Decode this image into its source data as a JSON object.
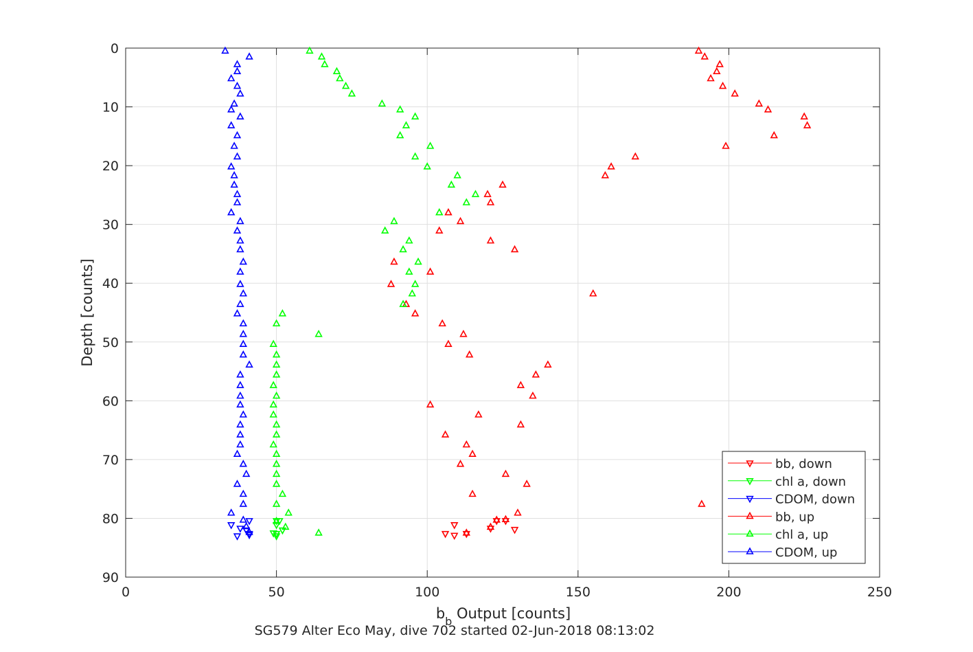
{
  "chart_data": {
    "type": "scatter",
    "title": "",
    "xlabel_main": "b",
    "xlabel_sub": "b",
    "xlabel_rest": " Output [counts]",
    "ylabel": "Depth [counts]",
    "caption": "SG579 Alter Eco May, dive 702 started 02-Jun-2018 08:13:02",
    "xlim": [
      0,
      250
    ],
    "ylim": [
      0,
      90
    ],
    "y_reversed": true,
    "grid": true,
    "legend_position": "bottom-right",
    "x_ticks": [
      "0",
      "50",
      "100",
      "150",
      "200",
      "250"
    ],
    "y_ticks": [
      "0",
      "10",
      "20",
      "30",
      "40",
      "50",
      "60",
      "70",
      "80",
      "90"
    ],
    "x_tick_values": [
      0,
      50,
      100,
      150,
      200,
      250
    ],
    "y_tick_values": [
      0,
      10,
      20,
      30,
      40,
      50,
      60,
      70,
      80,
      90
    ],
    "series": [
      {
        "name": "bb, down",
        "color": "#ff0000",
        "marker": "triangle-down",
        "points": [
          [
            109,
            81.1
          ],
          [
            106,
            82.6
          ],
          [
            109,
            82.9
          ],
          [
            113,
            82.6
          ],
          [
            121,
            81.7
          ],
          [
            129,
            81.9
          ],
          [
            126,
            80.4
          ],
          [
            123,
            80.4
          ]
        ]
      },
      {
        "name": "chl a, down",
        "color": "#00ff00",
        "marker": "triangle-down",
        "points": [
          [
            50,
            80.4
          ],
          [
            51,
            80.4
          ],
          [
            50,
            81.1
          ],
          [
            52,
            82.0
          ],
          [
            49,
            82.5
          ],
          [
            50,
            83.0
          ],
          [
            50,
            82.6
          ]
        ]
      },
      {
        "name": "CDOM, down",
        "color": "#0000ff",
        "marker": "triangle-down",
        "points": [
          [
            35,
            81.1
          ],
          [
            38,
            81.7
          ],
          [
            41,
            80.4
          ],
          [
            40,
            82.0
          ],
          [
            41,
            82.6
          ],
          [
            37,
            83.0
          ],
          [
            41,
            82.8
          ]
        ]
      },
      {
        "name": "bb, up",
        "color": "#ff0000",
        "marker": "triangle-up",
        "points": [
          [
            190,
            0.5
          ],
          [
            192,
            1.5
          ],
          [
            197,
            2.8
          ],
          [
            196,
            4.0
          ],
          [
            194,
            5.2
          ],
          [
            198,
            6.5
          ],
          [
            202,
            7.8
          ],
          [
            210,
            9.5
          ],
          [
            213,
            10.5
          ],
          [
            225,
            11.7
          ],
          [
            226,
            13.2
          ],
          [
            215,
            14.9
          ],
          [
            199,
            16.7
          ],
          [
            169,
            18.5
          ],
          [
            161,
            20.2
          ],
          [
            159,
            21.7
          ],
          [
            125,
            23.3
          ],
          [
            120,
            24.9
          ],
          [
            121,
            26.3
          ],
          [
            107,
            28.0
          ],
          [
            111,
            29.5
          ],
          [
            104,
            31.1
          ],
          [
            121,
            32.8
          ],
          [
            129,
            34.3
          ],
          [
            89,
            36.4
          ],
          [
            101,
            38.1
          ],
          [
            88,
            40.2
          ],
          [
            155,
            41.8
          ],
          [
            93,
            43.6
          ],
          [
            96,
            45.2
          ],
          [
            105,
            46.9
          ],
          [
            112,
            48.7
          ],
          [
            107,
            50.4
          ],
          [
            114,
            52.2
          ],
          [
            140,
            53.9
          ],
          [
            136,
            55.6
          ],
          [
            131,
            57.4
          ],
          [
            135,
            59.2
          ],
          [
            101,
            60.7
          ],
          [
            117,
            62.4
          ],
          [
            131,
            64.1
          ],
          [
            106,
            65.8
          ],
          [
            113,
            67.5
          ],
          [
            115,
            69.1
          ],
          [
            111,
            70.8
          ],
          [
            126,
            72.5
          ],
          [
            133,
            74.2
          ],
          [
            115,
            75.9
          ],
          [
            191,
            77.6
          ],
          [
            130,
            79.1
          ],
          [
            126,
            80.2
          ],
          [
            123,
            80.3
          ],
          [
            121,
            81.5
          ],
          [
            113,
            82.5
          ]
        ]
      },
      {
        "name": "chl a, up",
        "color": "#00ff00",
        "marker": "triangle-up",
        "points": [
          [
            61,
            0.5
          ],
          [
            65,
            1.5
          ],
          [
            66,
            2.8
          ],
          [
            70,
            4.0
          ],
          [
            71,
            5.2
          ],
          [
            73,
            6.5
          ],
          [
            75,
            7.8
          ],
          [
            85,
            9.5
          ],
          [
            91,
            10.5
          ],
          [
            96,
            11.7
          ],
          [
            93,
            13.2
          ],
          [
            91,
            14.9
          ],
          [
            101,
            16.7
          ],
          [
            96,
            18.5
          ],
          [
            100,
            20.2
          ],
          [
            110,
            21.7
          ],
          [
            108,
            23.3
          ],
          [
            116,
            24.9
          ],
          [
            113,
            26.3
          ],
          [
            104,
            28.0
          ],
          [
            89,
            29.5
          ],
          [
            86,
            31.1
          ],
          [
            94,
            32.8
          ],
          [
            92,
            34.3
          ],
          [
            97,
            36.4
          ],
          [
            94,
            38.1
          ],
          [
            96,
            40.2
          ],
          [
            95,
            41.8
          ],
          [
            92,
            43.6
          ],
          [
            52,
            45.2
          ],
          [
            50,
            46.9
          ],
          [
            64,
            48.7
          ],
          [
            49,
            50.4
          ],
          [
            50,
            52.2
          ],
          [
            50,
            53.9
          ],
          [
            50,
            55.6
          ],
          [
            49,
            57.4
          ],
          [
            50,
            59.2
          ],
          [
            49,
            60.7
          ],
          [
            49,
            62.4
          ],
          [
            50,
            64.1
          ],
          [
            50,
            65.8
          ],
          [
            49,
            67.5
          ],
          [
            50,
            69.1
          ],
          [
            50,
            70.8
          ],
          [
            50,
            72.5
          ],
          [
            50,
            74.2
          ],
          [
            52,
            75.9
          ],
          [
            50,
            77.6
          ],
          [
            54,
            79.1
          ],
          [
            50,
            80.5
          ],
          [
            53,
            81.5
          ],
          [
            64,
            82.5
          ]
        ]
      },
      {
        "name": "CDOM, up",
        "color": "#0000ff",
        "marker": "triangle-up",
        "points": [
          [
            33,
            0.5
          ],
          [
            41,
            1.5
          ],
          [
            37,
            2.8
          ],
          [
            37,
            4.0
          ],
          [
            35,
            5.2
          ],
          [
            37,
            6.5
          ],
          [
            38,
            7.8
          ],
          [
            36,
            9.5
          ],
          [
            35,
            10.5
          ],
          [
            38,
            11.7
          ],
          [
            35,
            13.2
          ],
          [
            37,
            14.9
          ],
          [
            36,
            16.7
          ],
          [
            37,
            18.5
          ],
          [
            35,
            20.2
          ],
          [
            36,
            21.7
          ],
          [
            36,
            23.3
          ],
          [
            37,
            24.9
          ],
          [
            37,
            26.3
          ],
          [
            35,
            28.0
          ],
          [
            38,
            29.5
          ],
          [
            37,
            31.1
          ],
          [
            38,
            32.8
          ],
          [
            38,
            34.3
          ],
          [
            39,
            36.4
          ],
          [
            38,
            38.1
          ],
          [
            38,
            40.2
          ],
          [
            39,
            41.8
          ],
          [
            38,
            43.6
          ],
          [
            37,
            45.2
          ],
          [
            39,
            46.9
          ],
          [
            39,
            48.7
          ],
          [
            39,
            50.4
          ],
          [
            39,
            52.2
          ],
          [
            41,
            53.9
          ],
          [
            38,
            55.6
          ],
          [
            38,
            57.4
          ],
          [
            38,
            59.2
          ],
          [
            38,
            60.7
          ],
          [
            39,
            62.4
          ],
          [
            38,
            64.1
          ],
          [
            38,
            65.8
          ],
          [
            38,
            67.5
          ],
          [
            37,
            69.1
          ],
          [
            39,
            70.8
          ],
          [
            40,
            72.5
          ],
          [
            37,
            74.2
          ],
          [
            39,
            75.9
          ],
          [
            39,
            77.6
          ],
          [
            35,
            79.1
          ],
          [
            39,
            80.3
          ],
          [
            40,
            81.4
          ],
          [
            41,
            82.4
          ]
        ]
      }
    ]
  }
}
